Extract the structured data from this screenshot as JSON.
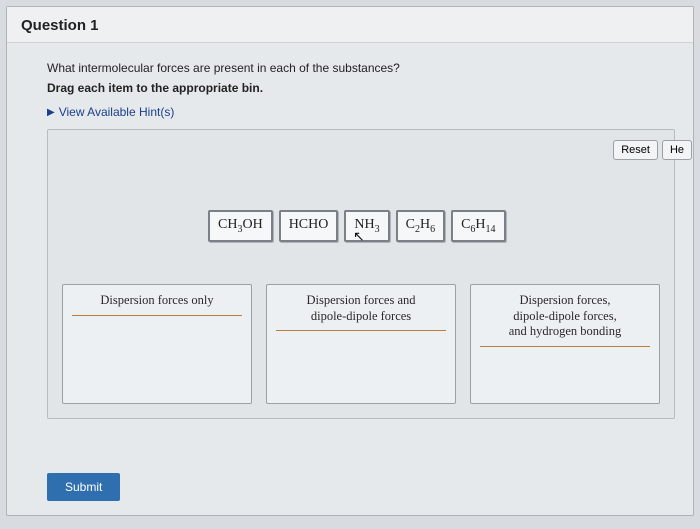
{
  "header": {
    "title": "Question 1"
  },
  "prompt": "What intermolecular forces are present in each of the substances?",
  "instruction": "Drag each item to the appropriate bin.",
  "hint": {
    "label": "View Available Hint(s)"
  },
  "buttons": {
    "reset": "Reset",
    "help": "He",
    "submit": "Submit"
  },
  "chips": [
    {
      "html": "CH<sub>3</sub>OH"
    },
    {
      "html": "HCHO"
    },
    {
      "html": "NH<sub>3</sub>"
    },
    {
      "html": "C<sub>2</sub>H<sub>6</sub>"
    },
    {
      "html": "C<sub>6</sub>H<sub>14</sub>"
    }
  ],
  "bins": [
    {
      "title": "Dispersion forces only"
    },
    {
      "title": "Dispersion forces and<br>dipole-dipole forces"
    },
    {
      "title": "Dispersion forces,<br>dipole-dipole forces,<br>and hydrogen bonding"
    }
  ],
  "colors": {
    "page_bg": "#d8dce0",
    "panel_bg": "#e6e9ec",
    "accent": "#2f6fb0",
    "bin_rule": "#b8803a"
  }
}
